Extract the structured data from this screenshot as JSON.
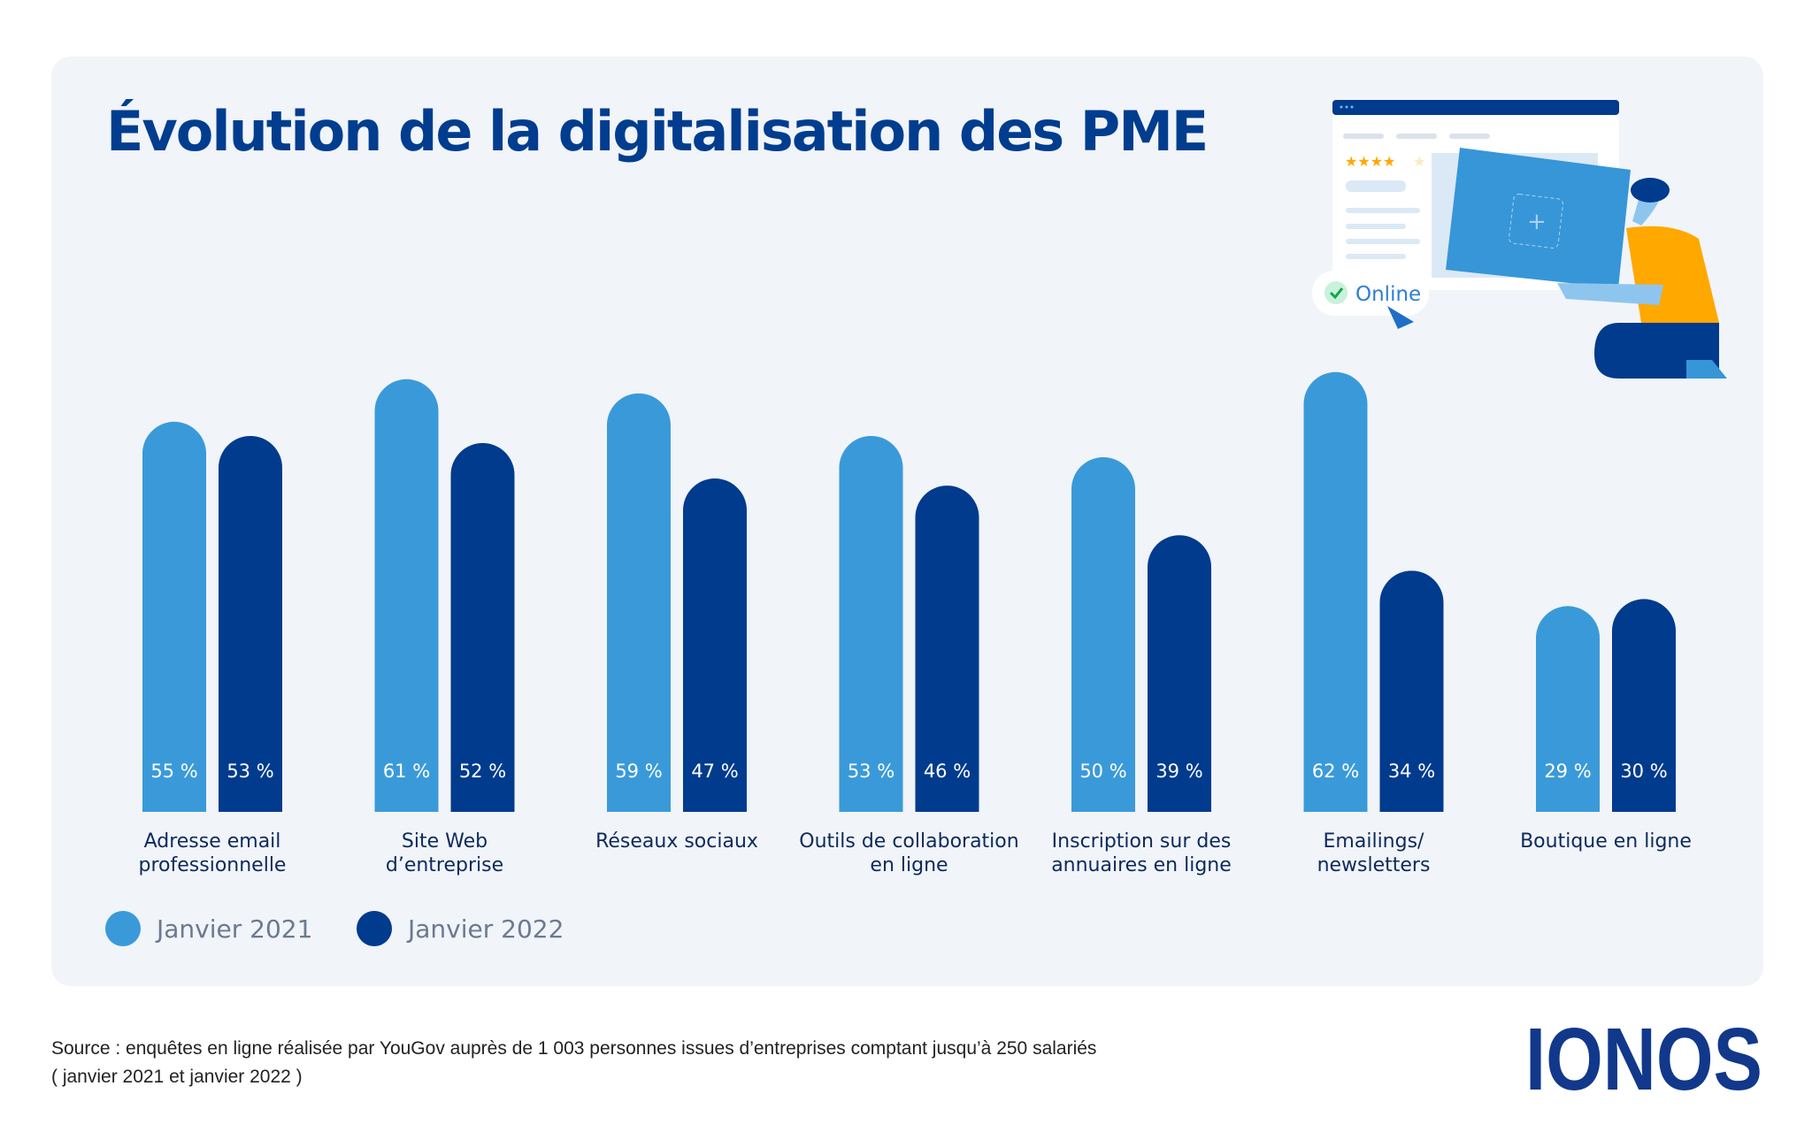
{
  "chart_data": {
    "type": "bar",
    "title": "Évolution de la digitalisation des PME",
    "categories": [
      "Adresse email\nprofessionnelle",
      "Site Web\nd’entreprise",
      "Réseaux sociaux",
      "Outils de collaboration\nen ligne",
      "Inscription sur des\nannuaires en ligne",
      "Emailings/\nnewsletters",
      "Boutique en ligne"
    ],
    "series": [
      {
        "name": "Janvier 2021",
        "color": "#3a9ad9",
        "values": [
          55,
          61,
          59,
          53,
          50,
          62,
          29
        ]
      },
      {
        "name": "Janvier 2022",
        "color": "#003b8e",
        "values": [
          53,
          52,
          47,
          46,
          39,
          34,
          30
        ]
      }
    ],
    "value_suffix": " %",
    "ylim": [
      0,
      100
    ],
    "grid": false,
    "legend_position": "bottom-left"
  },
  "illustration": {
    "badge_label": "Online"
  },
  "footer": {
    "source_line1": "Source : enquêtes en ligne réalisée par YouGov auprès de 1 003 personnes issues d’entreprises comptant jusqu’à 250 salariés",
    "source_line2": "( janvier 2021 et janvier 2022 )",
    "logo": "IONOS"
  },
  "colors": {
    "title": "#003d8f",
    "panel": "#f1f4f8",
    "logo": "#11388a",
    "shirt": "#ffa800"
  }
}
